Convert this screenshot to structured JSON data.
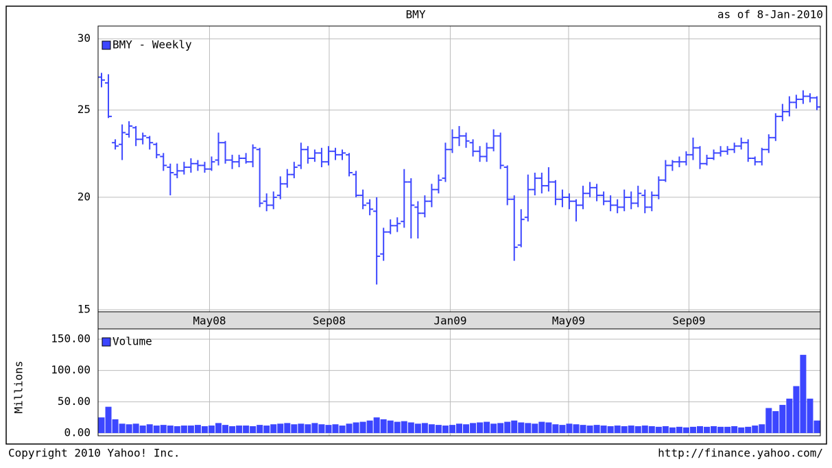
{
  "chart_data": [
    {
      "type": "ohlc",
      "title": "BMY",
      "subtitle": "as of 8-Jan-2010",
      "log_scale": true,
      "grid": true,
      "ylim": [
        15,
        31
      ],
      "yticks": [
        15,
        20,
        25,
        30
      ],
      "xlim": [
        -0.5,
        104.5
      ],
      "xticks": [
        {
          "value": 15.7,
          "label": "May08"
        },
        {
          "value": 33.1,
          "label": "Sep08"
        },
        {
          "value": 50.7,
          "label": "Jan09"
        },
        {
          "value": 67.9,
          "label": "May09"
        },
        {
          "value": 85.4,
          "label": "Sep09"
        }
      ],
      "series": [
        {
          "name": "BMY - Weekly",
          "color": "#3c46ff",
          "open": [
            27.2,
            26.8,
            23.0,
            22.9,
            23.5,
            23.9,
            23.2,
            23.3,
            22.9,
            22.2,
            21.6,
            21.2,
            21.4,
            21.6,
            21.8,
            21.7,
            21.5,
            22.0,
            23.0,
            22.0,
            21.9,
            22.1,
            21.9,
            22.6,
            19.8,
            19.6,
            20.1,
            20.7,
            21.2,
            21.7,
            22.6,
            22.1,
            22.4,
            21.9,
            22.5,
            22.3,
            22.3,
            21.2,
            20.1,
            19.7,
            19.3,
            17.3,
            18.3,
            18.6,
            18.8,
            20.8,
            19.5,
            19.2,
            19.8,
            20.4,
            21.0,
            22.6,
            23.3,
            23.4,
            23.0,
            22.5,
            22.2,
            22.7,
            23.4,
            21.6,
            19.9,
            17.7,
            19.0,
            20.4,
            21.0,
            20.6,
            20.8,
            19.9,
            20.0,
            19.8,
            19.6,
            20.2,
            20.5,
            20.1,
            19.8,
            19.6,
            19.5,
            20.0,
            19.7,
            20.1,
            19.5,
            20.1,
            20.9,
            21.7,
            21.9,
            21.9,
            22.3,
            22.7,
            21.8,
            22.1,
            22.4,
            22.5,
            22.6,
            22.8,
            23.0,
            22.1,
            21.9,
            22.6,
            23.3,
            24.6,
            24.9,
            25.5,
            25.7,
            25.9,
            25.8
          ],
          "high": [
            27.5,
            27.4,
            23.2,
            24.1,
            24.3,
            24.0,
            23.6,
            23.4,
            23.0,
            22.4,
            21.8,
            21.8,
            21.9,
            22.1,
            22.0,
            21.9,
            22.2,
            23.6,
            23.1,
            22.3,
            22.3,
            22.4,
            22.9,
            22.7,
            20.2,
            20.3,
            21.1,
            21.5,
            21.9,
            23.0,
            22.8,
            22.6,
            22.7,
            22.8,
            22.7,
            22.6,
            22.4,
            21.4,
            20.4,
            19.9,
            20.0,
            18.5,
            18.9,
            19.0,
            21.5,
            21.0,
            19.8,
            20.1,
            20.7,
            21.2,
            23.0,
            23.8,
            24.0,
            23.6,
            23.2,
            22.8,
            23.0,
            23.8,
            23.6,
            21.7,
            20.1,
            19.4,
            21.2,
            21.3,
            21.3,
            21.6,
            20.9,
            20.4,
            20.2,
            19.9,
            20.6,
            20.8,
            20.7,
            20.3,
            20.1,
            19.9,
            20.4,
            20.3,
            20.6,
            20.4,
            20.3,
            21.1,
            22.0,
            22.0,
            22.2,
            22.5,
            23.3,
            22.8,
            22.3,
            22.6,
            22.8,
            22.8,
            23.0,
            23.3,
            23.2,
            22.2,
            22.7,
            23.5,
            24.8,
            25.4,
            25.9,
            26.0,
            26.3,
            26.1,
            25.9
          ],
          "low": [
            26.5,
            24.5,
            22.6,
            22.0,
            23.3,
            22.8,
            22.9,
            22.6,
            22.1,
            21.4,
            20.1,
            21.0,
            21.2,
            21.3,
            21.4,
            21.3,
            21.4,
            21.7,
            21.8,
            21.5,
            21.6,
            21.8,
            21.6,
            19.5,
            19.3,
            19.4,
            19.9,
            20.5,
            21.0,
            21.5,
            21.8,
            21.9,
            21.6,
            21.7,
            22.0,
            22.0,
            21.1,
            20.0,
            19.4,
            19.1,
            16.0,
            17.0,
            18.2,
            18.3,
            18.5,
            18.0,
            18.0,
            19.0,
            19.5,
            20.2,
            20.8,
            22.4,
            22.8,
            22.7,
            22.2,
            21.9,
            21.9,
            22.5,
            21.5,
            19.6,
            17.0,
            17.6,
            18.8,
            20.1,
            20.2,
            20.3,
            19.6,
            19.5,
            19.4,
            18.8,
            19.4,
            20.0,
            19.8,
            19.6,
            19.3,
            19.2,
            19.3,
            19.4,
            19.5,
            19.2,
            19.3,
            19.9,
            20.8,
            21.4,
            21.6,
            21.7,
            22.0,
            21.5,
            21.7,
            22.0,
            22.2,
            22.3,
            22.4,
            22.6,
            21.9,
            21.7,
            21.7,
            22.4,
            23.1,
            24.3,
            24.6,
            25.1,
            25.4,
            25.5,
            25.0
          ],
          "close": [
            27.0,
            24.6,
            22.8,
            23.6,
            24.0,
            23.2,
            23.4,
            23.0,
            22.3,
            21.7,
            21.3,
            21.4,
            21.6,
            21.8,
            21.7,
            21.5,
            21.9,
            23.0,
            22.0,
            21.9,
            22.1,
            21.9,
            22.7,
            19.7,
            19.6,
            20.0,
            20.7,
            21.2,
            21.6,
            22.6,
            22.1,
            22.4,
            21.9,
            22.5,
            22.3,
            22.4,
            21.3,
            20.1,
            19.6,
            19.4,
            17.2,
            18.3,
            18.6,
            18.7,
            20.8,
            19.6,
            19.2,
            19.8,
            20.4,
            20.9,
            22.6,
            23.3,
            23.4,
            23.1,
            22.5,
            22.2,
            22.7,
            23.4,
            21.7,
            19.9,
            17.6,
            18.9,
            20.4,
            21.0,
            20.6,
            20.8,
            19.9,
            20.0,
            19.8,
            19.6,
            20.2,
            20.5,
            20.1,
            19.8,
            19.6,
            19.5,
            20.0,
            19.7,
            20.2,
            19.5,
            20.1,
            20.9,
            21.7,
            21.9,
            21.9,
            22.3,
            22.7,
            21.8,
            22.1,
            22.4,
            22.5,
            22.6,
            22.8,
            23.0,
            22.1,
            21.9,
            22.6,
            23.3,
            24.6,
            24.9,
            25.5,
            25.7,
            25.9,
            25.8,
            25.2
          ]
        }
      ]
    },
    {
      "type": "bar",
      "y_label": "Millions",
      "grid": true,
      "ylim": [
        0,
        150
      ],
      "yticks": [
        {
          "value": 0,
          "label": "0.00"
        },
        {
          "value": 50,
          "label": "50.00"
        },
        {
          "value": 100,
          "label": "100.00"
        },
        {
          "value": 150,
          "label": "150.00"
        }
      ],
      "xlim": [
        -0.5,
        104.5
      ],
      "series": [
        {
          "name": "Volume",
          "color": "#3c46ff",
          "values": [
            25,
            42,
            22,
            15,
            14,
            15,
            12,
            14,
            12,
            13,
            12,
            11,
            12,
            12,
            13,
            11,
            12,
            16,
            13,
            11,
            12,
            12,
            11,
            13,
            12,
            14,
            15,
            16,
            14,
            15,
            14,
            16,
            14,
            13,
            14,
            12,
            15,
            17,
            18,
            20,
            25,
            22,
            20,
            18,
            19,
            17,
            15,
            16,
            14,
            13,
            12,
            13,
            15,
            14,
            16,
            17,
            18,
            15,
            16,
            18,
            20,
            17,
            16,
            15,
            18,
            17,
            14,
            13,
            15,
            14,
            13,
            12,
            13,
            12,
            11,
            12,
            11,
            12,
            11,
            12,
            11,
            10,
            11,
            9,
            10,
            9,
            10,
            11,
            10,
            11,
            10,
            10,
            11,
            9,
            10,
            12,
            14,
            40,
            35,
            45,
            55,
            75,
            125,
            55,
            20
          ]
        }
      ]
    }
  ],
  "footer": {
    "copyright": "Copyright 2010 Yahoo! Inc.",
    "url": "http://finance.yahoo.com/"
  }
}
